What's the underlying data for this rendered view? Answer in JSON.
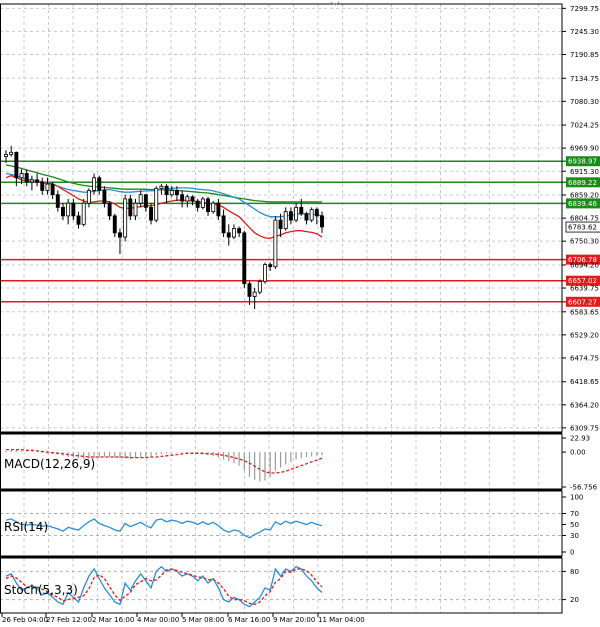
{
  "chart_data": {
    "type": "candlestick",
    "time_labels": [
      "26 Feb 04:00",
      "27 Feb 12:00",
      "2 Mar 16:00",
      "4 Mar 00:00",
      "5 Mar 08:00",
      "6 Mar 16:00",
      "9 Mar 20:00",
      "11 Mar 04:00"
    ],
    "price_axis": {
      "range": [
        6300,
        7310
      ],
      "ticks": [
        "7299.75",
        "7245.30",
        "7190.85",
        "7134.75",
        "7080.30",
        "7024.25",
        "6969.90",
        "6915.30",
        "6859.20",
        "6804.75",
        "6750.30",
        "6694.20",
        "6639.75",
        "6583.65",
        "6529.20",
        "6474.75",
        "6418.65",
        "6364.20",
        "6309.75"
      ]
    },
    "current_price": {
      "label": "6783.62",
      "value": 6783.62
    },
    "levels": [
      {
        "label": "6938.97",
        "value": 6938.97,
        "color": "#1a8a1a"
      },
      {
        "label": "6889.22",
        "value": 6889.22,
        "color": "#1a8a1a"
      },
      {
        "label": "6839.46",
        "value": 6839.46,
        "color": "#1a8a1a"
      },
      {
        "label": "6706.78",
        "value": 6706.78,
        "color": "#e11b1b"
      },
      {
        "label": "6657.02",
        "value": 6657.02,
        "color": "#e11b1b"
      },
      {
        "label": "6607.27",
        "value": 6607.27,
        "color": "#e11b1b"
      }
    ],
    "candles": [
      [
        6950,
        6965,
        6935,
        6955
      ],
      [
        6955,
        6975,
        6950,
        6960
      ],
      [
        6960,
        6962,
        6880,
        6900
      ],
      [
        6900,
        6920,
        6885,
        6910
      ],
      [
        6910,
        6920,
        6880,
        6890
      ],
      [
        6890,
        6905,
        6870,
        6895
      ],
      [
        6895,
        6910,
        6880,
        6890
      ],
      [
        6890,
        6900,
        6860,
        6870
      ],
      [
        6870,
        6900,
        6860,
        6885
      ],
      [
        6885,
        6890,
        6850,
        6860
      ],
      [
        6860,
        6870,
        6820,
        6830
      ],
      [
        6830,
        6840,
        6800,
        6810
      ],
      [
        6810,
        6850,
        6790,
        6840
      ],
      [
        6840,
        6850,
        6800,
        6810
      ],
      [
        6810,
        6820,
        6780,
        6790
      ],
      [
        6790,
        6850,
        6785,
        6840
      ],
      [
        6840,
        6875,
        6830,
        6870
      ],
      [
        6870,
        6910,
        6860,
        6900
      ],
      [
        6900,
        6905,
        6860,
        6870
      ],
      [
        6870,
        6880,
        6830,
        6840
      ],
      [
        6840,
        6845,
        6800,
        6810
      ],
      [
        6810,
        6815,
        6760,
        6770
      ],
      [
        6770,
        6780,
        6720,
        6760
      ],
      [
        6760,
        6860,
        6750,
        6850
      ],
      [
        6850,
        6860,
        6800,
        6810
      ],
      [
        6810,
        6850,
        6800,
        6840
      ],
      [
        6840,
        6870,
        6830,
        6860
      ],
      [
        6860,
        6862,
        6820,
        6830
      ],
      [
        6830,
        6840,
        6790,
        6800
      ],
      [
        6800,
        6880,
        6795,
        6875
      ],
      [
        6875,
        6885,
        6860,
        6880
      ],
      [
        6880,
        6885,
        6840,
        6860
      ],
      [
        6860,
        6880,
        6855,
        6870
      ],
      [
        6870,
        6880,
        6845,
        6860
      ],
      [
        6860,
        6870,
        6830,
        6845
      ],
      [
        6845,
        6860,
        6830,
        6855
      ],
      [
        6855,
        6858,
        6835,
        6845
      ],
      [
        6845,
        6850,
        6820,
        6830
      ],
      [
        6830,
        6855,
        6825,
        6850
      ],
      [
        6850,
        6855,
        6810,
        6820
      ],
      [
        6820,
        6845,
        6815,
        6840
      ],
      [
        6840,
        6850,
        6800,
        6810
      ],
      [
        6810,
        6825,
        6760,
        6770
      ],
      [
        6770,
        6790,
        6740,
        6760
      ],
      [
        6760,
        6790,
        6755,
        6780
      ],
      [
        6780,
        6785,
        6760,
        6770
      ],
      [
        6770,
        6775,
        6640,
        6650
      ],
      [
        6650,
        6655,
        6600,
        6620
      ],
      [
        6620,
        6640,
        6590,
        6630
      ],
      [
        6630,
        6660,
        6625,
        6655
      ],
      [
        6655,
        6700,
        6650,
        6695
      ],
      [
        6695,
        6700,
        6680,
        6690
      ],
      [
        6690,
        6810,
        6685,
        6800
      ],
      [
        6800,
        6815,
        6760,
        6780
      ],
      [
        6780,
        6830,
        6775,
        6820
      ],
      [
        6820,
        6830,
        6790,
        6800
      ],
      [
        6800,
        6840,
        6795,
        6830
      ],
      [
        6830,
        6850,
        6810,
        6815
      ],
      [
        6815,
        6820,
        6790,
        6800
      ],
      [
        6800,
        6830,
        6795,
        6825
      ],
      [
        6825,
        6830,
        6790,
        6810
      ],
      [
        6810,
        6820,
        6770,
        6784
      ]
    ],
    "ma_red": [
      6900,
      6905,
      6900,
      6895,
      6893,
      6890,
      6890,
      6888,
      6887,
      6885,
      6880,
      6872,
      6865,
      6858,
      6850,
      6845,
      6842,
      6843,
      6845,
      6845,
      6843,
      6838,
      6830,
      6828,
      6828,
      6830,
      6832,
      6834,
      6834,
      6836,
      6840,
      6843,
      6845,
      6847,
      6847,
      6846,
      6845,
      6843,
      6842,
      6840,
      6838,
      6836,
      6830,
      6822,
      6815,
      6808,
      6795,
      6782,
      6770,
      6763,
      6758,
      6757,
      6762,
      6765,
      6770,
      6773,
      6775,
      6775,
      6773,
      6771,
      6768,
      6760
    ],
    "ma_green": [
      6930,
      6928,
      6925,
      6922,
      6918,
      6915,
      6912,
      6908,
      6905,
      6902,
      6898,
      6894,
      6890,
      6887,
      6884,
      6882,
      6880,
      6879,
      6878,
      6877,
      6876,
      6875,
      6874,
      6873,
      6873,
      6873,
      6873,
      6873,
      6872,
      6872,
      6872,
      6871,
      6871,
      6870,
      6869,
      6868,
      6867,
      6866,
      6865,
      6864,
      6862,
      6860,
      6858,
      6856,
      6854,
      6852,
      6850,
      6848,
      6846,
      6845,
      6844,
      6843,
      6843,
      6843,
      6843,
      6843,
      6843,
      6843,
      6843,
      6843,
      6843,
      6843
    ],
    "ma_blue": [
      6910,
      6908,
      6905,
      6900,
      6897,
      6895,
      6893,
      6890,
      6888,
      6885,
      6880,
      6876,
      6872,
      6870,
      6868,
      6866,
      6866,
      6868,
      6870,
      6872,
      6872,
      6870,
      6867,
      6866,
      6866,
      6867,
      6868,
      6869,
      6869,
      6870,
      6872,
      6874,
      6875,
      6876,
      6876,
      6876,
      6875,
      6873,
      6872,
      6871,
      6869,
      6866,
      6862,
      6858,
      6854,
      6850,
      6842,
      6834,
      6826,
      6818,
      6812,
      6808,
      6808,
      6808,
      6810,
      6812,
      6814,
      6815,
      6815,
      6814,
      6813,
      6810
    ],
    "macd": {
      "label": "MACD(12,26,9)",
      "ticks": [
        "22.93",
        "0.00",
        "-56.756"
      ],
      "range": [
        -56.756,
        22.93
      ],
      "hist": [
        2,
        3,
        3,
        2,
        1,
        1,
        0,
        -1,
        -2,
        -3,
        -4,
        -6,
        -8,
        -9,
        -10,
        -11,
        -11,
        -10,
        -9,
        -8,
        -8,
        -9,
        -10,
        -11,
        -11,
        -10,
        -9,
        -8,
        -7,
        -5,
        -3,
        -2,
        -1,
        -1,
        -1,
        -1,
        -2,
        -3,
        -4,
        -5,
        -7,
        -9,
        -12,
        -15,
        -18,
        -22,
        -30,
        -40,
        -45,
        -48,
        -46,
        -40,
        -30,
        -25,
        -20,
        -16,
        -12,
        -10,
        -8,
        -7,
        -6,
        -5
      ],
      "signal": [
        4,
        4,
        4,
        4,
        3,
        3,
        2,
        1,
        0,
        -1,
        -2,
        -3,
        -4,
        -5,
        -6,
        -7,
        -8,
        -8,
        -8,
        -8,
        -8,
        -8,
        -8,
        -8,
        -9,
        -9,
        -9,
        -9,
        -8,
        -8,
        -7,
        -6,
        -5,
        -4,
        -3,
        -2,
        -2,
        -2,
        -2,
        -3,
        -3,
        -4,
        -5,
        -7,
        -9,
        -11,
        -14,
        -18,
        -23,
        -28,
        -32,
        -34,
        -34,
        -33,
        -31,
        -28,
        -25,
        -22,
        -19,
        -16,
        -13,
        -10
      ]
    },
    "rsi": {
      "label": "RSI(14)",
      "ticks": [
        "100",
        "70",
        "50",
        "30",
        "0"
      ],
      "range": [
        0,
        100
      ],
      "levels": [
        70,
        30
      ],
      "values": [
        58,
        60,
        55,
        50,
        49,
        50,
        49,
        47,
        48,
        45,
        42,
        38,
        45,
        42,
        40,
        48,
        55,
        60,
        52,
        48,
        45,
        40,
        38,
        52,
        46,
        50,
        54,
        48,
        44,
        58,
        60,
        55,
        58,
        56,
        52,
        56,
        54,
        50,
        55,
        50,
        54,
        48,
        40,
        36,
        40,
        38,
        30,
        26,
        32,
        36,
        42,
        40,
        55,
        50,
        56,
        52,
        56,
        53,
        50,
        54,
        50,
        48
      ]
    },
    "stoch": {
      "label": "Stoch(5,3,3)",
      "ticks": [
        "80",
        "20"
      ],
      "range": [
        0,
        100
      ],
      "levels": [
        80,
        20
      ],
      "k": [
        70,
        75,
        55,
        40,
        45,
        50,
        45,
        30,
        35,
        25,
        15,
        10,
        35,
        25,
        15,
        45,
        70,
        85,
        65,
        45,
        30,
        15,
        10,
        55,
        40,
        60,
        75,
        60,
        45,
        80,
        90,
        80,
        85,
        80,
        70,
        75,
        70,
        60,
        70,
        55,
        65,
        45,
        20,
        15,
        25,
        20,
        10,
        5,
        15,
        25,
        45,
        40,
        85,
        70,
        85,
        80,
        90,
        85,
        70,
        60,
        45,
        35
      ],
      "d": [
        65,
        70,
        66,
        57,
        47,
        45,
        47,
        42,
        37,
        30,
        25,
        17,
        20,
        23,
        25,
        28,
        43,
        67,
        73,
        65,
        47,
        30,
        18,
        27,
        35,
        52,
        58,
        65,
        60,
        62,
        72,
        83,
        85,
        82,
        78,
        75,
        72,
        68,
        67,
        62,
        63,
        55,
        43,
        27,
        20,
        20,
        18,
        12,
        10,
        15,
        28,
        37,
        57,
        65,
        80,
        78,
        85,
        85,
        82,
        72,
        58,
        47
      ]
    }
  }
}
